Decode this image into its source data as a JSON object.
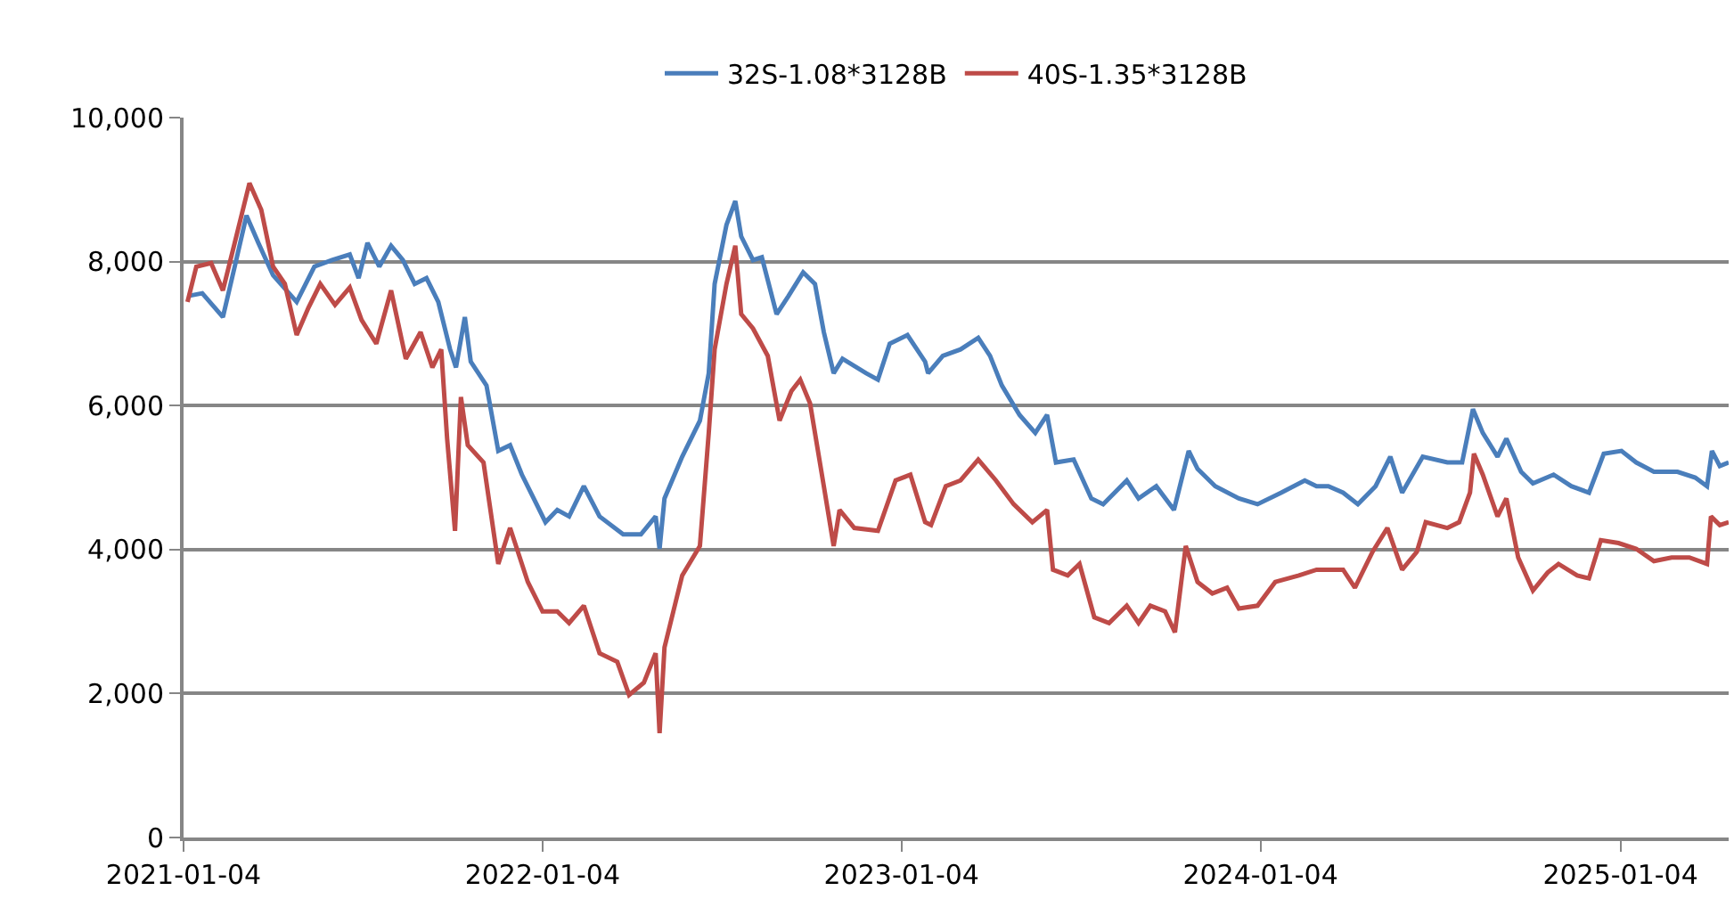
{
  "chart_data": {
    "type": "line",
    "legend": "top",
    "grid": "y",
    "marker": "none",
    "line_style": "solid",
    "xlim": [
      "2021-01-04",
      "2025-04-24"
    ],
    "xticks": [
      "2021-01-04",
      "2022-01-04",
      "2023-01-04",
      "2024-01-04",
      "2025-01-04"
    ],
    "ylim": [
      0,
      10000
    ],
    "yticks": [
      {
        "value": 0,
        "label": "0"
      },
      {
        "value": 2000,
        "label": "2,000"
      },
      {
        "value": 4000,
        "label": "4,000"
      },
      {
        "value": 6000,
        "label": "6,000"
      },
      {
        "value": 8000,
        "label": "8,000"
      },
      {
        "value": 10000,
        "label": "10,000"
      }
    ],
    "series": [
      {
        "name": "32S-1.08*3128B",
        "color": "#4a7ebb",
        "x": [
          "2021-01-08",
          "2021-01-23",
          "2021-02-13",
          "2021-02-25",
          "2021-03-09",
          "2021-03-21",
          "2021-04-05",
          "2021-04-29",
          "2021-05-17",
          "2021-06-04",
          "2021-06-22",
          "2021-07-01",
          "2021-07-10",
          "2021-07-22",
          "2021-08-03",
          "2021-08-15",
          "2021-08-27",
          "2021-09-08",
          "2021-09-20",
          "2021-10-02",
          "2021-10-08",
          "2021-10-17",
          "2021-10-23",
          "2021-11-08",
          "2021-11-20",
          "2021-12-02",
          "2021-12-14",
          "2021-12-26",
          "2022-01-07",
          "2022-01-19",
          "2022-01-31",
          "2022-02-15",
          "2022-03-03",
          "2022-03-27",
          "2022-04-14",
          "2022-04-29",
          "2022-05-03",
          "2022-05-08",
          "2022-05-26",
          "2022-06-13",
          "2022-06-22",
          "2022-06-28",
          "2022-07-10",
          "2022-07-19",
          "2022-07-25",
          "2022-08-06",
          "2022-08-15",
          "2022-08-30",
          "2022-09-11",
          "2022-09-26",
          "2022-10-08",
          "2022-10-17",
          "2022-10-27",
          "2022-11-05",
          "2022-11-29",
          "2022-12-11",
          "2022-12-23",
          "2023-01-10",
          "2023-01-28",
          "2023-01-31",
          "2023-02-15",
          "2023-03-05",
          "2023-03-23",
          "2023-04-04",
          "2023-04-16",
          "2023-05-04",
          "2023-05-20",
          "2023-06-01",
          "2023-06-10",
          "2023-06-28",
          "2023-07-16",
          "2023-07-28",
          "2023-08-21",
          "2023-09-02",
          "2023-09-20",
          "2023-10-08",
          "2023-10-23",
          "2023-11-01",
          "2023-11-19",
          "2023-12-13",
          "2024-01-01",
          "2024-01-25",
          "2024-02-18",
          "2024-03-01",
          "2024-03-13",
          "2024-03-28",
          "2024-04-12",
          "2024-04-30",
          "2024-05-15",
          "2024-05-27",
          "2024-06-17",
          "2024-07-12",
          "2024-07-27",
          "2024-08-07",
          "2024-08-17",
          "2024-09-01",
          "2024-09-10",
          "2024-09-25",
          "2024-10-07",
          "2024-10-28",
          "2024-11-15",
          "2024-12-03",
          "2024-12-18",
          "2025-01-05",
          "2025-01-20",
          "2025-02-07",
          "2025-03-03",
          "2025-03-21",
          "2025-04-02",
          "2025-04-07",
          "2025-04-15",
          "2025-04-24"
        ],
        "values": [
          7520,
          7560,
          7230,
          7930,
          8640,
          8260,
          7810,
          7440,
          7930,
          8020,
          8100,
          7770,
          8260,
          7930,
          8220,
          8020,
          7690,
          7770,
          7440,
          6780,
          6530,
          7230,
          6610,
          6280,
          5370,
          5450,
          5040,
          4710,
          4380,
          4550,
          4460,
          4880,
          4460,
          4210,
          4210,
          4460,
          4010,
          4710,
          5290,
          5790,
          6450,
          7690,
          8510,
          8840,
          8350,
          8020,
          8060,
          7270,
          7520,
          7850,
          7690,
          7020,
          6450,
          6650,
          6450,
          6360,
          6860,
          6980,
          6610,
          6450,
          6690,
          6780,
          6940,
          6690,
          6280,
          5870,
          5620,
          5870,
          5210,
          5250,
          4710,
          4630,
          4960,
          4710,
          4880,
          4550,
          5370,
          5120,
          4880,
          4710,
          4630,
          4790,
          4960,
          4880,
          4880,
          4790,
          4630,
          4880,
          5290,
          4790,
          5290,
          5210,
          5210,
          5950,
          5620,
          5290,
          5540,
          5080,
          4920,
          5040,
          4880,
          4790,
          5330,
          5370,
          5210,
          5080,
          5080,
          5000,
          4880,
          5370,
          5160,
          5210
        ]
      },
      {
        "name": "40S-1.35*3128B",
        "color": "#be4b48",
        "x": [
          "2021-01-08",
          "2021-01-17",
          "2021-02-01",
          "2021-02-13",
          "2021-02-25",
          "2021-03-12",
          "2021-03-24",
          "2021-04-05",
          "2021-04-17",
          "2021-04-29",
          "2021-05-11",
          "2021-05-23",
          "2021-06-07",
          "2021-06-22",
          "2021-07-04",
          "2021-07-19",
          "2021-08-03",
          "2021-08-18",
          "2021-09-02",
          "2021-09-14",
          "2021-09-23",
          "2021-09-29",
          "2021-10-07",
          "2021-10-13",
          "2021-10-20",
          "2021-11-05",
          "2021-11-20",
          "2021-12-02",
          "2021-12-20",
          "2022-01-04",
          "2022-01-19",
          "2022-01-31",
          "2022-02-15",
          "2022-03-03",
          "2022-03-21",
          "2022-04-02",
          "2022-04-17",
          "2022-04-29",
          "2022-05-03",
          "2022-05-08",
          "2022-05-26",
          "2022-06-13",
          "2022-06-22",
          "2022-06-28",
          "2022-07-10",
          "2022-07-19",
          "2022-07-25",
          "2022-08-06",
          "2022-08-21",
          "2022-09-02",
          "2022-09-14",
          "2022-09-23",
          "2022-10-03",
          "2022-10-17",
          "2022-10-27",
          "2022-11-02",
          "2022-11-17",
          "2022-12-11",
          "2022-12-29",
          "2023-01-13",
          "2023-01-28",
          "2023-02-03",
          "2023-02-18",
          "2023-03-05",
          "2023-03-23",
          "2023-04-10",
          "2023-04-28",
          "2023-05-17",
          "2023-06-01",
          "2023-06-07",
          "2023-06-22",
          "2023-07-04",
          "2023-07-19",
          "2023-08-03",
          "2023-08-21",
          "2023-09-02",
          "2023-09-14",
          "2023-09-29",
          "2023-10-09",
          "2023-10-20",
          "2023-11-01",
          "2023-11-16",
          "2023-12-01",
          "2023-12-13",
          "2024-01-01",
          "2024-01-19",
          "2024-02-12",
          "2024-03-01",
          "2024-03-13",
          "2024-03-28",
          "2024-04-09",
          "2024-04-27",
          "2024-05-12",
          "2024-05-27",
          "2024-06-11",
          "2024-06-20",
          "2024-07-12",
          "2024-07-24",
          "2024-08-04",
          "2024-08-08",
          "2024-08-17",
          "2024-09-01",
          "2024-09-10",
          "2024-09-22",
          "2024-10-07",
          "2024-10-22",
          "2024-11-02",
          "2024-11-21",
          "2024-12-03",
          "2024-12-15",
          "2025-01-02",
          "2025-01-20",
          "2025-02-07",
          "2025-02-25",
          "2025-03-15",
          "2025-04-02",
          "2025-04-06",
          "2025-04-15",
          "2025-04-24"
        ],
        "values": [
          7440,
          7930,
          7980,
          7600,
          8260,
          9090,
          8720,
          7930,
          7690,
          6980,
          7360,
          7690,
          7400,
          7640,
          7190,
          6860,
          7600,
          6650,
          7020,
          6530,
          6780,
          5540,
          4260,
          6120,
          5450,
          5210,
          3800,
          4300,
          3550,
          3140,
          3140,
          2980,
          3220,
          2560,
          2440,
          1980,
          2150,
          2560,
          1450,
          2640,
          3640,
          4050,
          5620,
          6780,
          7690,
          8220,
          7270,
          7070,
          6690,
          5790,
          6200,
          6360,
          6030,
          4880,
          4050,
          4550,
          4300,
          4260,
          4960,
          5040,
          4380,
          4340,
          4880,
          4960,
          5250,
          4960,
          4630,
          4380,
          4550,
          3720,
          3640,
          3800,
          3060,
          2980,
          3220,
          2980,
          3220,
          3140,
          2850,
          4050,
          3550,
          3390,
          3470,
          3180,
          3220,
          3550,
          3640,
          3720,
          3720,
          3720,
          3470,
          3970,
          4300,
          3720,
          3970,
          4380,
          4300,
          4380,
          4790,
          5330,
          5040,
          4460,
          4710,
          3890,
          3430,
          3680,
          3800,
          3640,
          3600,
          4130,
          4090,
          4010,
          3840,
          3890,
          3890,
          3800,
          4460,
          4340,
          4380
        ]
      }
    ]
  }
}
